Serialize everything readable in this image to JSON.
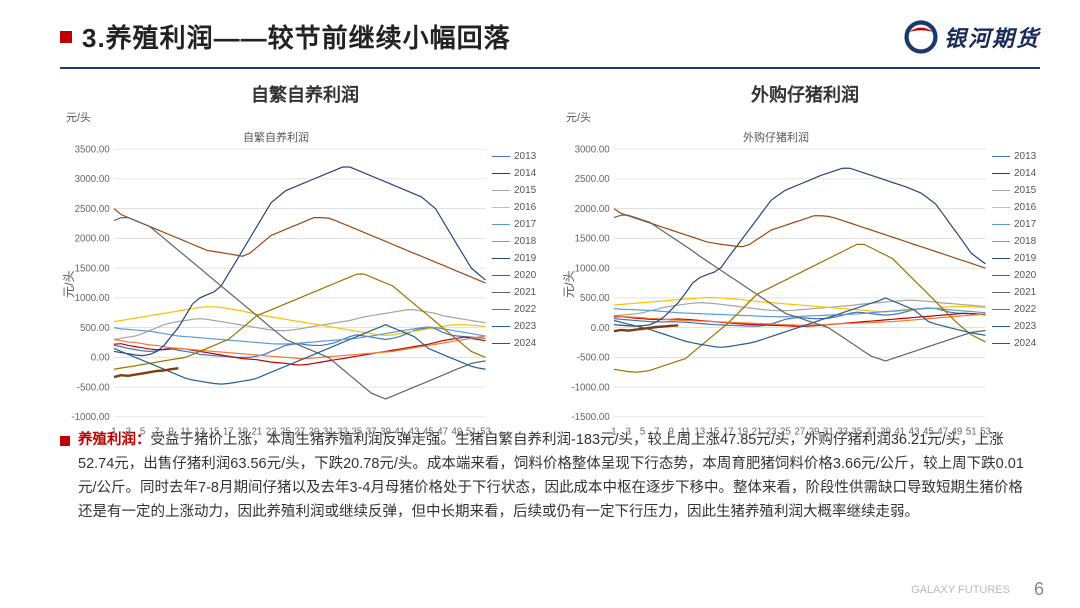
{
  "header": {
    "title": "3.养殖利润——较节前继续小幅回落",
    "logo_text": "银河期货",
    "logo_red": "#c00000",
    "logo_blue": "#1b3a6b"
  },
  "footer": {
    "brand": "GALAXY FUTURES",
    "page": "6"
  },
  "body": {
    "lead": "养殖利润：",
    "text": "受益于猪价上涨，本周生猪养殖利润反弹走强。生猪自繁自养利润-183元/头，较上周上涨47.85元/头，外购仔猪利润36.21元/头，上涨52.74元，出售仔猪利润63.56元/头，下跌20.78元/头。成本端来看，饲料价格整体呈现下行态势，本周育肥猪饲料价格3.66元/公斤，较上周下跌0.01元/公斤。同时去年7-8月期间仔猪以及去年3-4月母猪价格处于下行状态，因此成本中枢在逐步下移中。整体来看，阶段性供需缺口导致短期生猪价格还是有一定的上涨动力，因此养殖利润或继续反弹，但中长期来看，后续或仍有一定下行压力，因此生猪养殖利润大概率继续走弱。"
  },
  "legend_years": [
    "2013",
    "2014",
    "2015",
    "2016",
    "2017",
    "2018",
    "2019",
    "2020",
    "2021",
    "2022",
    "2023",
    "2024"
  ],
  "series_colors": {
    "2013": "#4472c4",
    "2014": "#c00000",
    "2015": "#a5a5a5",
    "2016": "#ffc000",
    "2017": "#5b9bd5",
    "2018": "#ed7d31",
    "2019": "#264478",
    "2020": "#9e480e",
    "2021": "#636363",
    "2022": "#997300",
    "2023": "#255e91",
    "2024": "#843c0c"
  },
  "x_ticks": [
    1,
    3,
    5,
    7,
    9,
    11,
    13,
    15,
    17,
    19,
    21,
    23,
    25,
    27,
    29,
    31,
    33,
    35,
    37,
    39,
    41,
    43,
    45,
    47,
    49,
    51,
    53
  ],
  "chart_left": {
    "title": "自繁自养利润",
    "sub_title": "自繁自养利润",
    "unit": "元/头",
    "ylabel": "元/头",
    "ymin": -1000,
    "ymax": 3500,
    "ytick_step": 500,
    "grid_color": "#d9d9d9",
    "series": {
      "2013": [
        200,
        180,
        150,
        130,
        110,
        100,
        110,
        140,
        150,
        120,
        100,
        80,
        50,
        40,
        30,
        20,
        10,
        0,
        0,
        0,
        20,
        50,
        100,
        150,
        200,
        220,
        230,
        210,
        200,
        200,
        220,
        250,
        300,
        350,
        380,
        360,
        340,
        320,
        300,
        320,
        350,
        400,
        450,
        480,
        500,
        480,
        420,
        380,
        360,
        350,
        340,
        330,
        320
      ],
      "2014": [
        220,
        230,
        200,
        180,
        160,
        140,
        130,
        130,
        140,
        150,
        140,
        120,
        100,
        80,
        60,
        40,
        20,
        0,
        -20,
        -30,
        -40,
        -60,
        -80,
        -90,
        -100,
        -120,
        -130,
        -120,
        -100,
        -80,
        -60,
        -40,
        -20,
        0,
        20,
        40,
        60,
        80,
        100,
        120,
        140,
        160,
        180,
        200,
        220,
        250,
        280,
        300,
        320,
        340,
        320,
        300,
        280
      ],
      "2015": [
        300,
        320,
        340,
        360,
        400,
        450,
        500,
        550,
        580,
        600,
        620,
        640,
        650,
        640,
        620,
        600,
        580,
        560,
        540,
        520,
        500,
        480,
        460,
        450,
        450,
        460,
        480,
        500,
        520,
        540,
        560,
        580,
        600,
        620,
        650,
        680,
        700,
        720,
        740,
        760,
        780,
        800,
        800,
        780,
        760,
        740,
        700,
        680,
        660,
        640,
        620,
        600,
        580
      ],
      "2016": [
        600,
        620,
        640,
        660,
        680,
        700,
        720,
        740,
        760,
        780,
        800,
        820,
        840,
        850,
        850,
        840,
        820,
        800,
        780,
        750,
        720,
        700,
        680,
        660,
        640,
        620,
        600,
        580,
        560,
        540,
        520,
        500,
        480,
        460,
        440,
        420,
        400,
        380,
        370,
        380,
        400,
        420,
        440,
        460,
        480,
        500,
        520,
        540,
        550,
        550,
        540,
        530,
        520
      ],
      "2017": [
        500,
        480,
        470,
        460,
        450,
        440,
        420,
        400,
        380,
        360,
        350,
        340,
        330,
        320,
        310,
        300,
        290,
        280,
        270,
        260,
        250,
        240,
        230,
        225,
        225,
        230,
        240,
        250,
        260,
        270,
        280,
        290,
        300,
        310,
        320,
        340,
        360,
        380,
        400,
        420,
        440,
        460,
        480,
        500,
        510,
        500,
        480,
        460,
        440,
        420,
        400,
        380,
        360
      ],
      "2018": [
        300,
        280,
        260,
        250,
        230,
        210,
        200,
        180,
        160,
        150,
        140,
        130,
        120,
        110,
        100,
        90,
        80,
        70,
        60,
        50,
        40,
        30,
        20,
        10,
        0,
        -10,
        -20,
        -20,
        -10,
        0,
        10,
        20,
        30,
        40,
        50,
        60,
        70,
        80,
        90,
        100,
        120,
        140,
        160,
        180,
        200,
        220,
        240,
        260,
        280,
        300,
        320,
        340,
        360
      ],
      "2019": [
        100,
        80,
        60,
        40,
        30,
        50,
        100,
        200,
        350,
        500,
        700,
        900,
        1000,
        1050,
        1100,
        1200,
        1400,
        1600,
        1800,
        2000,
        2200,
        2400,
        2600,
        2700,
        2800,
        2850,
        2900,
        2950,
        3000,
        3050,
        3100,
        3150,
        3200,
        3200,
        3150,
        3100,
        3050,
        3000,
        2950,
        2900,
        2850,
        2800,
        2750,
        2700,
        2600,
        2500,
        2300,
        2100,
        1900,
        1700,
        1500,
        1400,
        1300
      ],
      "2020": [
        2500,
        2400,
        2350,
        2300,
        2250,
        2200,
        2150,
        2100,
        2050,
        2000,
        1950,
        1900,
        1850,
        1800,
        1780,
        1760,
        1740,
        1720,
        1700,
        1750,
        1850,
        1950,
        2050,
        2100,
        2150,
        2200,
        2250,
        2300,
        2350,
        2350,
        2340,
        2300,
        2250,
        2200,
        2150,
        2100,
        2050,
        2000,
        1950,
        1900,
        1850,
        1800,
        1750,
        1700,
        1650,
        1600,
        1550,
        1500,
        1450,
        1400,
        1350,
        1300,
        1250
      ],
      "2021": [
        2300,
        2350,
        2350,
        2300,
        2250,
        2200,
        2100,
        2000,
        1900,
        1800,
        1700,
        1600,
        1500,
        1400,
        1300,
        1200,
        1100,
        1000,
        900,
        800,
        700,
        600,
        500,
        400,
        300,
        250,
        200,
        150,
        100,
        50,
        0,
        -100,
        -200,
        -300,
        -400,
        -500,
        -600,
        -650,
        -700,
        -650,
        -600,
        -550,
        -500,
        -450,
        -400,
        -350,
        -300,
        -250,
        -200,
        -150,
        -100,
        -80,
        -60
      ],
      "2022": [
        -200,
        -180,
        -160,
        -140,
        -120,
        -100,
        -80,
        -60,
        -40,
        -20,
        0,
        50,
        100,
        150,
        200,
        250,
        300,
        400,
        500,
        600,
        700,
        750,
        800,
        850,
        900,
        950,
        1000,
        1050,
        1100,
        1150,
        1200,
        1250,
        1300,
        1350,
        1400,
        1400,
        1350,
        1300,
        1250,
        1200,
        1100,
        1000,
        900,
        800,
        700,
        600,
        500,
        400,
        300,
        200,
        100,
        50,
        0
      ],
      "2023": [
        150,
        100,
        50,
        0,
        -50,
        -100,
        -150,
        -200,
        -250,
        -300,
        -350,
        -380,
        -400,
        -420,
        -440,
        -450,
        -440,
        -420,
        -400,
        -380,
        -350,
        -300,
        -250,
        -200,
        -150,
        -100,
        -50,
        0,
        50,
        100,
        150,
        200,
        250,
        300,
        350,
        400,
        450,
        500,
        550,
        500,
        450,
        400,
        350,
        250,
        150,
        100,
        50,
        0,
        -50,
        -100,
        -150,
        -180,
        -200
      ],
      "2024": [
        -330,
        -300,
        -310,
        -290,
        -270,
        -250,
        -230,
        -220,
        -200,
        -183
      ]
    }
  },
  "chart_right": {
    "title": "外购仔猪利润",
    "sub_title": "外购仔猪利润",
    "unit": "元/头",
    "ylabel": "元/头",
    "ymin": -1500,
    "ymax": 3000,
    "ytick_step": 500,
    "grid_color": "#d9d9d9",
    "series": {
      "2013": [
        150,
        140,
        130,
        120,
        110,
        100,
        95,
        95,
        100,
        95,
        90,
        80,
        70,
        60,
        50,
        45,
        40,
        35,
        30,
        25,
        25,
        35,
        60,
        100,
        140,
        160,
        170,
        160,
        150,
        150,
        160,
        180,
        210,
        240,
        260,
        250,
        235,
        220,
        210,
        220,
        240,
        270,
        300,
        320,
        330,
        320,
        290,
        260,
        245,
        240,
        235,
        230,
        225
      ],
      "2014": [
        180,
        185,
        170,
        160,
        150,
        140,
        135,
        135,
        140,
        145,
        140,
        130,
        120,
        110,
        100,
        90,
        80,
        70,
        60,
        55,
        50,
        45,
        40,
        35,
        30,
        25,
        20,
        25,
        30,
        40,
        50,
        60,
        70,
        80,
        90,
        100,
        110,
        120,
        130,
        140,
        150,
        160,
        170,
        180,
        190,
        200,
        210,
        220,
        230,
        240,
        235,
        225,
        215
      ],
      "2015": [
        200,
        210,
        220,
        230,
        250,
        280,
        310,
        340,
        360,
        380,
        395,
        410,
        420,
        415,
        405,
        390,
        375,
        360,
        345,
        330,
        315,
        300,
        290,
        285,
        285,
        290,
        300,
        310,
        320,
        330,
        340,
        350,
        360,
        370,
        385,
        400,
        410,
        420,
        430,
        440,
        450,
        460,
        460,
        450,
        440,
        430,
        415,
        405,
        395,
        385,
        375,
        365,
        355
      ],
      "2016": [
        380,
        390,
        400,
        410,
        420,
        430,
        440,
        450,
        460,
        470,
        480,
        490,
        500,
        505,
        505,
        500,
        490,
        480,
        470,
        455,
        440,
        430,
        420,
        410,
        400,
        390,
        380,
        370,
        360,
        350,
        340,
        330,
        320,
        310,
        300,
        290,
        280,
        270,
        265,
        270,
        280,
        290,
        300,
        310,
        320,
        330,
        340,
        350,
        355,
        355,
        350,
        345,
        340
      ],
      "2017": [
        320,
        310,
        305,
        300,
        295,
        290,
        280,
        270,
        260,
        250,
        245,
        240,
        235,
        230,
        225,
        220,
        215,
        210,
        205,
        200,
        195,
        190,
        185,
        182,
        182,
        185,
        190,
        195,
        200,
        205,
        210,
        215,
        220,
        225,
        230,
        240,
        250,
        260,
        270,
        280,
        290,
        300,
        310,
        320,
        325,
        320,
        310,
        300,
        290,
        280,
        270,
        260,
        250
      ],
      "2018": [
        200,
        190,
        180,
        175,
        165,
        155,
        150,
        140,
        130,
        125,
        120,
        115,
        110,
        105,
        100,
        95,
        90,
        85,
        80,
        75,
        70,
        65,
        60,
        55,
        50,
        45,
        40,
        40,
        45,
        50,
        55,
        60,
        65,
        70,
        75,
        80,
        85,
        90,
        95,
        100,
        110,
        120,
        130,
        140,
        150,
        160,
        170,
        180,
        190,
        200,
        210,
        220,
        230
      ],
      "2019": [
        50,
        40,
        30,
        25,
        30,
        50,
        100,
        180,
        300,
        420,
        580,
        750,
        840,
        890,
        930,
        1010,
        1180,
        1340,
        1500,
        1660,
        1820,
        1980,
        2140,
        2230,
        2310,
        2360,
        2410,
        2460,
        2510,
        2560,
        2600,
        2640,
        2680,
        2680,
        2640,
        2600,
        2560,
        2520,
        2480,
        2440,
        2400,
        2360,
        2310,
        2260,
        2170,
        2080,
        1920,
        1750,
        1590,
        1420,
        1250,
        1160,
        1070
      ],
      "2020": [
        2000,
        1920,
        1880,
        1840,
        1800,
        1760,
        1720,
        1680,
        1640,
        1600,
        1560,
        1520,
        1480,
        1440,
        1420,
        1400,
        1385,
        1370,
        1360,
        1400,
        1480,
        1560,
        1640,
        1680,
        1720,
        1760,
        1800,
        1840,
        1880,
        1880,
        1870,
        1840,
        1800,
        1760,
        1720,
        1680,
        1640,
        1600,
        1560,
        1520,
        1480,
        1440,
        1400,
        1360,
        1320,
        1280,
        1240,
        1200,
        1160,
        1120,
        1080,
        1040,
        1000
      ],
      "2021": [
        1850,
        1890,
        1890,
        1850,
        1810,
        1770,
        1690,
        1610,
        1530,
        1450,
        1370,
        1290,
        1200,
        1120,
        1040,
        960,
        880,
        800,
        720,
        640,
        560,
        480,
        400,
        320,
        240,
        200,
        160,
        120,
        80,
        40,
        0,
        -80,
        -160,
        -240,
        -320,
        -400,
        -480,
        -520,
        -560,
        -520,
        -480,
        -440,
        -400,
        -360,
        -320,
        -280,
        -240,
        -200,
        -160,
        -120,
        -80,
        -64,
        -48
      ],
      "2022": [
        -700,
        -720,
        -740,
        -750,
        -740,
        -720,
        -680,
        -640,
        -600,
        -560,
        -520,
        -420,
        -320,
        -220,
        -120,
        -20,
        80,
        200,
        320,
        440,
        560,
        620,
        680,
        740,
        800,
        860,
        920,
        980,
        1040,
        1100,
        1160,
        1220,
        1280,
        1340,
        1400,
        1400,
        1340,
        1280,
        1220,
        1160,
        1040,
        920,
        800,
        680,
        560,
        440,
        320,
        200,
        80,
        -20,
        -120,
        -180,
        -240
      ],
      "2023": [
        120,
        90,
        60,
        30,
        0,
        -30,
        -70,
        -110,
        -150,
        -190,
        -230,
        -255,
        -280,
        -300,
        -320,
        -330,
        -320,
        -300,
        -280,
        -260,
        -230,
        -190,
        -150,
        -110,
        -70,
        -30,
        10,
        50,
        90,
        130,
        170,
        210,
        250,
        290,
        330,
        370,
        410,
        450,
        500,
        450,
        400,
        350,
        300,
        200,
        100,
        60,
        30,
        0,
        -30,
        -60,
        -90,
        -110,
        -130
      ],
      "2024": [
        -60,
        -40,
        -50,
        -35,
        -20,
        -5,
        10,
        20,
        30,
        36
      ]
    }
  }
}
